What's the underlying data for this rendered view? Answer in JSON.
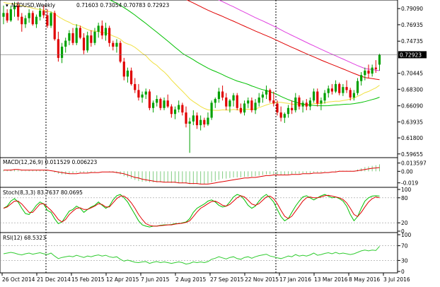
{
  "chart_data": {
    "type": "candlestick",
    "symbol": "NZDUSD,Weekly",
    "ohlc_readout": "0.71603 0.73054 0.70783 0.72923",
    "last_price_label": "0.72923",
    "colors": {
      "bull": "#00a000",
      "bear": "#e00000",
      "ma_fast": "#f0e040",
      "ma_mid": "#00c000",
      "ma_slow_1": "#e00000",
      "ma_slow_2": "#e040e0",
      "macd_hist": "#80cc80",
      "signal": "#e00000",
      "stoch_main": "#00c000",
      "rsi": "#30cc30"
    },
    "price_ticks": [
      "0.79090",
      "0.76935",
      "0.74735",
      "0.72923",
      "0.70445",
      "0.68300",
      "0.66090",
      "0.63935",
      "0.61800",
      "0.59655"
    ],
    "price_range": [
      0.5935,
      0.8005
    ],
    "x_labels": [
      "26 Oct 2014",
      "21 Dec 2014",
      "15 Feb 2015",
      "12 Apr 2015",
      "7 Jun 2015",
      "2 Aug 2015",
      "27 Sep 2015",
      "22 Nov 2015",
      "17 Jan 2016",
      "13 Mar 2016",
      "8 May 2016",
      "3 Jul 2016"
    ],
    "candles": [
      [
        0.78,
        0.795,
        0.77,
        0.785
      ],
      [
        0.785,
        0.79,
        0.772,
        0.775
      ],
      [
        0.775,
        0.795,
        0.773,
        0.79
      ],
      [
        0.79,
        0.8,
        0.78,
        0.795
      ],
      [
        0.795,
        0.8,
        0.775,
        0.78
      ],
      [
        0.78,
        0.785,
        0.76,
        0.77
      ],
      [
        0.77,
        0.782,
        0.765,
        0.778
      ],
      [
        0.778,
        0.79,
        0.772,
        0.785
      ],
      [
        0.785,
        0.788,
        0.768,
        0.77
      ],
      [
        0.77,
        0.783,
        0.765,
        0.78
      ],
      [
        0.78,
        0.792,
        0.775,
        0.788
      ],
      [
        0.788,
        0.795,
        0.778,
        0.782
      ],
      [
        0.782,
        0.79,
        0.765,
        0.768
      ],
      [
        0.768,
        0.787,
        0.765,
        0.785
      ],
      [
        0.785,
        0.788,
        0.748,
        0.75
      ],
      [
        0.75,
        0.76,
        0.72,
        0.725
      ],
      [
        0.725,
        0.745,
        0.718,
        0.74
      ],
      [
        0.74,
        0.752,
        0.732,
        0.748
      ],
      [
        0.748,
        0.762,
        0.742,
        0.758
      ],
      [
        0.758,
        0.765,
        0.742,
        0.745
      ],
      [
        0.745,
        0.77,
        0.742,
        0.765
      ],
      [
        0.765,
        0.768,
        0.75,
        0.752
      ],
      [
        0.752,
        0.758,
        0.73,
        0.735
      ],
      [
        0.735,
        0.76,
        0.732,
        0.755
      ],
      [
        0.755,
        0.762,
        0.74,
        0.745
      ],
      [
        0.745,
        0.765,
        0.742,
        0.76
      ],
      [
        0.76,
        0.772,
        0.752,
        0.768
      ],
      [
        0.768,
        0.775,
        0.75,
        0.755
      ],
      [
        0.755,
        0.772,
        0.748,
        0.765
      ],
      [
        0.765,
        0.768,
        0.74,
        0.745
      ],
      [
        0.745,
        0.748,
        0.735,
        0.74
      ],
      [
        0.74,
        0.75,
        0.732,
        0.745
      ],
      [
        0.745,
        0.748,
        0.718,
        0.72
      ],
      [
        0.72,
        0.725,
        0.695,
        0.7
      ],
      [
        0.7,
        0.712,
        0.692,
        0.708
      ],
      [
        0.708,
        0.712,
        0.688,
        0.69
      ],
      [
        0.69,
        0.698,
        0.678,
        0.682
      ],
      [
        0.682,
        0.69,
        0.668,
        0.672
      ],
      [
        0.672,
        0.68,
        0.665,
        0.676
      ],
      [
        0.676,
        0.684,
        0.67,
        0.68
      ],
      [
        0.68,
        0.683,
        0.655,
        0.658
      ],
      [
        0.658,
        0.668,
        0.652,
        0.665
      ],
      [
        0.665,
        0.675,
        0.66,
        0.67
      ],
      [
        0.67,
        0.672,
        0.655,
        0.658
      ],
      [
        0.658,
        0.672,
        0.655,
        0.668
      ],
      [
        0.668,
        0.676,
        0.658,
        0.66
      ],
      [
        0.66,
        0.663,
        0.645,
        0.65
      ],
      [
        0.65,
        0.66,
        0.643,
        0.656
      ],
      [
        0.656,
        0.668,
        0.652,
        0.662
      ],
      [
        0.662,
        0.665,
        0.648,
        0.652
      ],
      [
        0.652,
        0.66,
        0.632,
        0.637
      ],
      [
        0.637,
        0.645,
        0.598,
        0.64
      ],
      [
        0.64,
        0.655,
        0.635,
        0.648
      ],
      [
        0.648,
        0.652,
        0.63,
        0.635
      ],
      [
        0.635,
        0.648,
        0.628,
        0.642
      ],
      [
        0.642,
        0.645,
        0.632,
        0.636
      ],
      [
        0.636,
        0.652,
        0.634,
        0.645
      ],
      [
        0.645,
        0.668,
        0.642,
        0.665
      ],
      [
        0.665,
        0.672,
        0.658,
        0.67
      ],
      [
        0.67,
        0.685,
        0.665,
        0.68
      ],
      [
        0.68,
        0.688,
        0.668,
        0.672
      ],
      [
        0.672,
        0.678,
        0.655,
        0.66
      ],
      [
        0.66,
        0.67,
        0.652,
        0.668
      ],
      [
        0.668,
        0.678,
        0.66,
        0.675
      ],
      [
        0.675,
        0.678,
        0.655,
        0.658
      ],
      [
        0.658,
        0.664,
        0.65,
        0.652
      ],
      [
        0.652,
        0.668,
        0.648,
        0.664
      ],
      [
        0.664,
        0.672,
        0.658,
        0.668
      ],
      [
        0.668,
        0.672,
        0.652,
        0.655
      ],
      [
        0.655,
        0.67,
        0.65,
        0.665
      ],
      [
        0.665,
        0.678,
        0.66,
        0.672
      ],
      [
        0.672,
        0.68,
        0.665,
        0.676
      ],
      [
        0.676,
        0.688,
        0.67,
        0.682
      ],
      [
        0.682,
        0.684,
        0.665,
        0.668
      ],
      [
        0.668,
        0.68,
        0.66,
        0.664
      ],
      [
        0.664,
        0.668,
        0.648,
        0.652
      ],
      [
        0.652,
        0.66,
        0.64,
        0.645
      ],
      [
        0.645,
        0.652,
        0.638,
        0.65
      ],
      [
        0.65,
        0.662,
        0.645,
        0.658
      ],
      [
        0.658,
        0.668,
        0.65,
        0.655
      ],
      [
        0.655,
        0.678,
        0.652,
        0.672
      ],
      [
        0.672,
        0.675,
        0.656,
        0.66
      ],
      [
        0.66,
        0.668,
        0.652,
        0.665
      ],
      [
        0.665,
        0.67,
        0.655,
        0.66
      ],
      [
        0.66,
        0.672,
        0.655,
        0.668
      ],
      [
        0.668,
        0.684,
        0.665,
        0.68
      ],
      [
        0.68,
        0.684,
        0.66,
        0.664
      ],
      [
        0.664,
        0.672,
        0.655,
        0.668
      ],
      [
        0.668,
        0.682,
        0.664,
        0.678
      ],
      [
        0.678,
        0.688,
        0.672,
        0.684
      ],
      [
        0.684,
        0.69,
        0.676,
        0.68
      ],
      [
        0.68,
        0.695,
        0.678,
        0.69
      ],
      [
        0.69,
        0.692,
        0.675,
        0.678
      ],
      [
        0.678,
        0.69,
        0.674,
        0.686
      ],
      [
        0.686,
        0.695,
        0.678,
        0.682
      ],
      [
        0.682,
        0.685,
        0.668,
        0.672
      ],
      [
        0.672,
        0.682,
        0.668,
        0.678
      ],
      [
        0.678,
        0.698,
        0.675,
        0.694
      ],
      [
        0.694,
        0.706,
        0.688,
        0.702
      ],
      [
        0.702,
        0.712,
        0.695,
        0.708
      ],
      [
        0.708,
        0.716,
        0.698,
        0.704
      ],
      [
        0.704,
        0.716,
        0.7,
        0.712
      ],
      [
        0.712,
        0.722,
        0.705,
        0.71
      ],
      [
        0.716,
        0.7305,
        0.7078,
        0.7292
      ]
    ],
    "macd": {
      "label": "MACD(12,26,9) 0.011529 0.006223",
      "ticks": [
        "0.013597",
        "0.00",
        "-0.019"
      ],
      "range": [
        -0.024,
        0.019
      ],
      "hist": [
        0.002,
        0.002,
        0.003,
        0.003,
        0.002,
        0.001,
        0.001,
        0.002,
        0.002,
        0.002,
        0.002,
        0.002,
        0.001,
        0.0,
        -0.002,
        -0.004,
        -0.005,
        -0.005,
        -0.004,
        -0.003,
        -0.002,
        -0.002,
        -0.002,
        -0.002,
        -0.002,
        -0.001,
        0.0,
        0.0,
        0.0,
        -0.001,
        -0.002,
        -0.003,
        -0.005,
        -0.008,
        -0.01,
        -0.012,
        -0.014,
        -0.016,
        -0.017,
        -0.017,
        -0.018,
        -0.018,
        -0.018,
        -0.018,
        -0.018,
        -0.018,
        -0.019,
        -0.019,
        -0.019,
        -0.019,
        -0.02,
        -0.021,
        -0.021,
        -0.021,
        -0.021,
        -0.021,
        -0.02,
        -0.018,
        -0.016,
        -0.014,
        -0.012,
        -0.012,
        -0.011,
        -0.01,
        -0.01,
        -0.01,
        -0.009,
        -0.009,
        -0.009,
        -0.008,
        -0.007,
        -0.006,
        -0.005,
        -0.005,
        -0.005,
        -0.006,
        -0.006,
        -0.006,
        -0.005,
        -0.005,
        -0.004,
        -0.004,
        -0.003,
        -0.003,
        -0.003,
        -0.002,
        -0.002,
        -0.002,
        -0.001,
        0.0,
        0.0,
        0.001,
        0.001,
        0.001,
        0.001,
        0.001,
        0.001,
        0.003,
        0.005,
        0.007,
        0.008,
        0.009,
        0.01,
        0.0115
      ],
      "signal": [
        0.002,
        0.002,
        0.002,
        0.003,
        0.003,
        0.002,
        0.002,
        0.002,
        0.002,
        0.002,
        0.002,
        0.002,
        0.002,
        0.001,
        0.0,
        -0.001,
        -0.002,
        -0.003,
        -0.004,
        -0.004,
        -0.004,
        -0.003,
        -0.003,
        -0.003,
        -0.002,
        -0.002,
        -0.002,
        -0.001,
        -0.001,
        -0.001,
        -0.001,
        -0.002,
        -0.003,
        -0.004,
        -0.006,
        -0.008,
        -0.01,
        -0.011,
        -0.013,
        -0.014,
        -0.015,
        -0.016,
        -0.017,
        -0.017,
        -0.018,
        -0.018,
        -0.018,
        -0.018,
        -0.019,
        -0.019,
        -0.019,
        -0.02,
        -0.02,
        -0.02,
        -0.021,
        -0.021,
        -0.021,
        -0.02,
        -0.019,
        -0.018,
        -0.017,
        -0.016,
        -0.015,
        -0.014,
        -0.013,
        -0.012,
        -0.011,
        -0.011,
        -0.01,
        -0.01,
        -0.009,
        -0.008,
        -0.007,
        -0.007,
        -0.006,
        -0.006,
        -0.006,
        -0.006,
        -0.006,
        -0.005,
        -0.005,
        -0.005,
        -0.004,
        -0.004,
        -0.004,
        -0.003,
        -0.003,
        -0.003,
        -0.002,
        -0.002,
        -0.001,
        -0.001,
        0.0,
        0.0,
        0.0,
        0.0,
        0.0,
        0.001,
        0.002,
        0.003,
        0.004,
        0.005,
        0.0055,
        0.0062
      ]
    },
    "stoch": {
      "label": "Stoch(8,3,3) 83.7637 80.0695",
      "ticks": [
        "100",
        "80",
        "20",
        "0"
      ],
      "main": [
        55,
        60,
        72,
        78,
        70,
        55,
        42,
        40,
        50,
        62,
        70,
        65,
        50,
        45,
        30,
        18,
        22,
        35,
        48,
        52,
        60,
        55,
        45,
        52,
        58,
        62,
        70,
        62,
        55,
        60,
        75,
        85,
        88,
        80,
        70,
        55,
        40,
        25,
        15,
        12,
        10,
        12,
        12,
        14,
        15,
        15,
        16,
        18,
        18,
        20,
        22,
        30,
        45,
        55,
        60,
        65,
        72,
        75,
        70,
        62,
        58,
        60,
        70,
        82,
        88,
        85,
        75,
        62,
        55,
        60,
        72,
        82,
        88,
        80,
        70,
        52,
        35,
        25,
        30,
        45,
        60,
        72,
        82,
        85,
        80,
        75,
        80,
        85,
        88,
        84,
        80,
        82,
        78,
        72,
        60,
        40,
        25,
        35,
        55,
        72,
        80,
        84,
        85,
        84
      ],
      "signal": [
        55,
        58,
        65,
        72,
        72,
        65,
        55,
        45,
        45,
        55,
        65,
        66,
        58,
        50,
        40,
        28,
        22,
        28,
        40,
        48,
        55,
        56,
        52,
        52,
        56,
        60,
        66,
        64,
        58,
        58,
        68,
        78,
        84,
        84,
        78,
        68,
        55,
        40,
        28,
        18,
        14,
        12,
        12,
        13,
        14,
        15,
        15,
        17,
        18,
        19,
        21,
        25,
        35,
        46,
        55,
        60,
        66,
        71,
        72,
        68,
        62,
        60,
        64,
        72,
        80,
        85,
        82,
        74,
        65,
        62,
        66,
        74,
        82,
        84,
        78,
        66,
        50,
        36,
        30,
        36,
        48,
        60,
        72,
        80,
        82,
        80,
        80,
        82,
        85,
        86,
        84,
        82,
        80,
        76,
        68,
        55,
        40,
        35,
        45,
        58,
        70,
        78,
        82,
        80
      ]
    },
    "rsi": {
      "label": "RSI(12) 68.5323",
      "ticks": [
        "100",
        "70",
        "30",
        "0"
      ],
      "values": [
        48,
        50,
        52,
        50,
        47,
        45,
        48,
        50,
        47,
        49,
        51,
        48,
        46,
        50,
        42,
        35,
        38,
        40,
        42,
        40,
        44,
        41,
        38,
        42,
        40,
        43,
        45,
        42,
        44,
        40,
        38,
        40,
        33,
        28,
        31,
        28,
        25,
        24,
        26,
        27,
        22,
        25,
        27,
        24,
        26,
        24,
        22,
        24,
        26,
        24,
        20,
        22,
        26,
        24,
        26,
        24,
        27,
        33,
        36,
        40,
        37,
        34,
        38,
        40,
        35,
        33,
        38,
        40,
        36,
        40,
        43,
        45,
        47,
        42,
        40,
        37,
        35,
        38,
        42,
        40,
        46,
        42,
        44,
        42,
        45,
        50,
        44,
        46,
        49,
        51,
        48,
        52,
        48,
        50,
        48,
        46,
        48,
        52,
        56,
        58,
        56,
        58,
        57,
        68.5
      ]
    }
  }
}
